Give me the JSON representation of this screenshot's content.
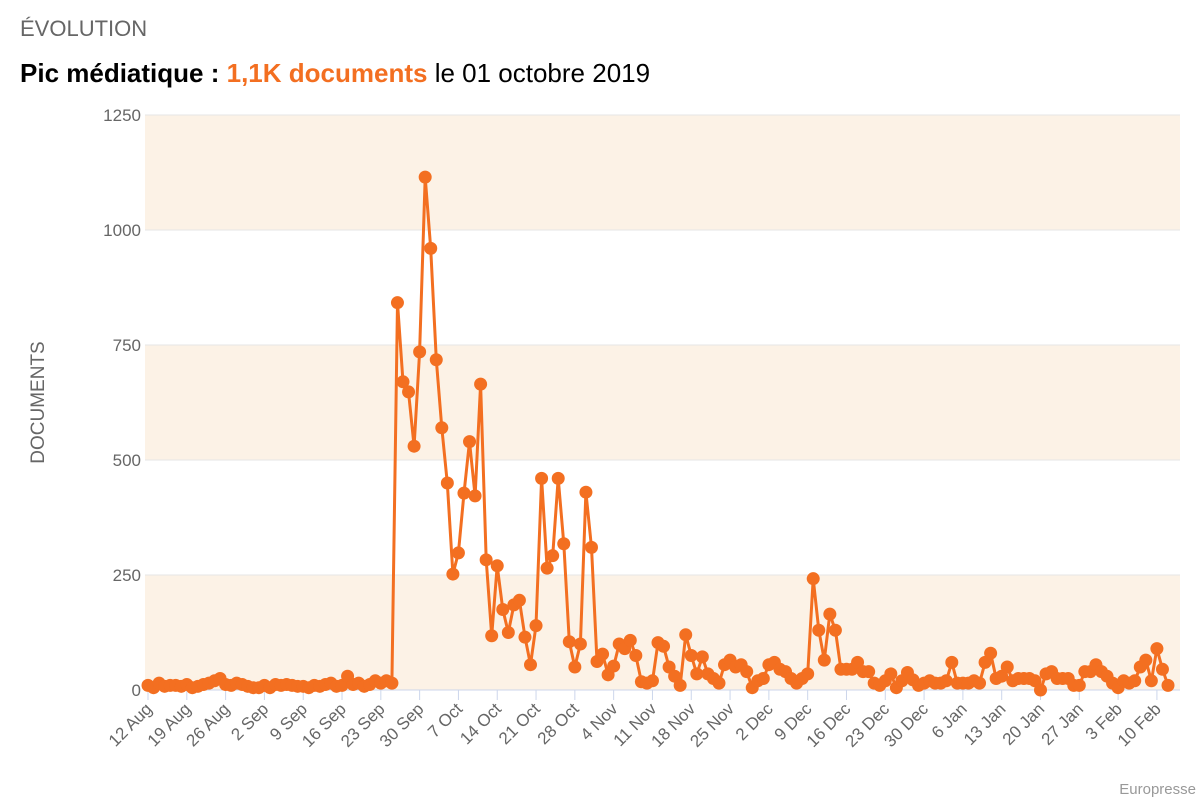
{
  "chart_data": {
    "type": "line",
    "header": "ÉVOLUTION",
    "title_prefix": "Pic médiatique :",
    "title_highlight": "1,1K documents",
    "title_suffix": "le 01 octobre 2019",
    "y_label": "DOCUMENTS",
    "source": "Europresse",
    "color": "#f36f21",
    "band_color": "#fcf2e6",
    "grid": true,
    "ylim": [
      0,
      1250
    ],
    "yticks": [
      0,
      250,
      500,
      750,
      1000,
      1250
    ],
    "categories": [
      "12 Aug",
      null,
      null,
      null,
      null,
      null,
      null,
      "19 Aug",
      null,
      null,
      null,
      null,
      null,
      null,
      "26 Aug",
      null,
      null,
      null,
      null,
      null,
      null,
      "2 Sep",
      null,
      null,
      null,
      null,
      null,
      null,
      "9 Sep",
      null,
      null,
      null,
      null,
      null,
      null,
      "16 Sep",
      null,
      null,
      null,
      null,
      null,
      null,
      "23 Sep",
      null,
      null,
      null,
      null,
      null,
      null,
      "30 Sep",
      null,
      null,
      null,
      null,
      null,
      null,
      "7 Oct",
      null,
      null,
      null,
      null,
      null,
      null,
      "14 Oct",
      null,
      null,
      null,
      null,
      null,
      null,
      "21 Oct",
      null,
      null,
      null,
      null,
      null,
      null,
      "28 Oct",
      null,
      null,
      null,
      null,
      null,
      null,
      "4 Nov",
      null,
      null,
      null,
      null,
      null,
      null,
      "11 Nov",
      null,
      null,
      null,
      null,
      null,
      null,
      "18 Nov",
      null,
      null,
      null,
      null,
      null,
      null,
      "25 Nov",
      null,
      null,
      null,
      null,
      null,
      null,
      "2 Dec",
      null,
      null,
      null,
      null,
      null,
      null,
      "9 Dec",
      null,
      null,
      null,
      null,
      null,
      null,
      "16 Dec",
      null,
      null,
      null,
      null,
      null,
      null,
      "23 Dec",
      null,
      null,
      null,
      null,
      null,
      null,
      "30 Dec",
      null,
      null,
      null,
      null,
      null,
      null,
      "6 Jan",
      null,
      null,
      null,
      null,
      null,
      null,
      "13 Jan",
      null,
      null,
      null,
      null,
      null,
      null,
      "20 Jan",
      null,
      null,
      null,
      null,
      null,
      null,
      "27 Jan",
      null,
      null,
      null,
      null,
      null,
      null,
      "3 Feb",
      null,
      null,
      null,
      null,
      null,
      null,
      "10 Feb",
      null,
      null
    ],
    "values": [
      10,
      5,
      15,
      8,
      10,
      10,
      8,
      12,
      5,
      8,
      12,
      15,
      20,
      25,
      12,
      10,
      15,
      12,
      8,
      5,
      5,
      10,
      5,
      12,
      10,
      12,
      10,
      8,
      8,
      5,
      10,
      8,
      12,
      15,
      8,
      10,
      30,
      12,
      15,
      8,
      12,
      20,
      15,
      20,
      15,
      842,
      670,
      648,
      530,
      735,
      1115,
      960,
      718,
      570,
      450,
      252,
      298,
      428,
      540,
      422,
      665,
      283,
      118,
      270,
      175,
      125,
      185,
      195,
      115,
      55,
      140,
      460,
      265,
      292,
      460,
      318,
      105,
      50,
      100,
      430,
      310,
      62,
      78,
      33,
      52,
      100,
      90,
      108,
      75,
      18,
      15,
      20,
      103,
      95,
      50,
      30,
      10,
      120,
      75,
      35,
      72,
      35,
      25,
      15,
      55,
      65,
      50,
      55,
      40,
      5,
      20,
      25,
      55,
      60,
      45,
      40,
      25,
      15,
      25,
      35,
      242,
      130,
      65,
      165,
      130,
      45,
      45,
      45,
      60,
      40,
      40,
      15,
      10,
      20,
      35,
      5,
      20,
      38,
      22,
      10,
      15,
      20,
      15,
      15,
      20,
      60,
      15,
      15,
      15,
      20,
      15,
      60,
      80,
      25,
      30,
      50,
      20,
      25,
      25,
      25,
      20,
      0,
      35,
      40,
      25,
      25,
      25,
      10,
      10,
      40,
      40,
      55,
      40,
      30,
      15,
      5,
      20,
      15,
      20,
      50,
      65,
      20,
      90,
      45,
      10
    ]
  }
}
